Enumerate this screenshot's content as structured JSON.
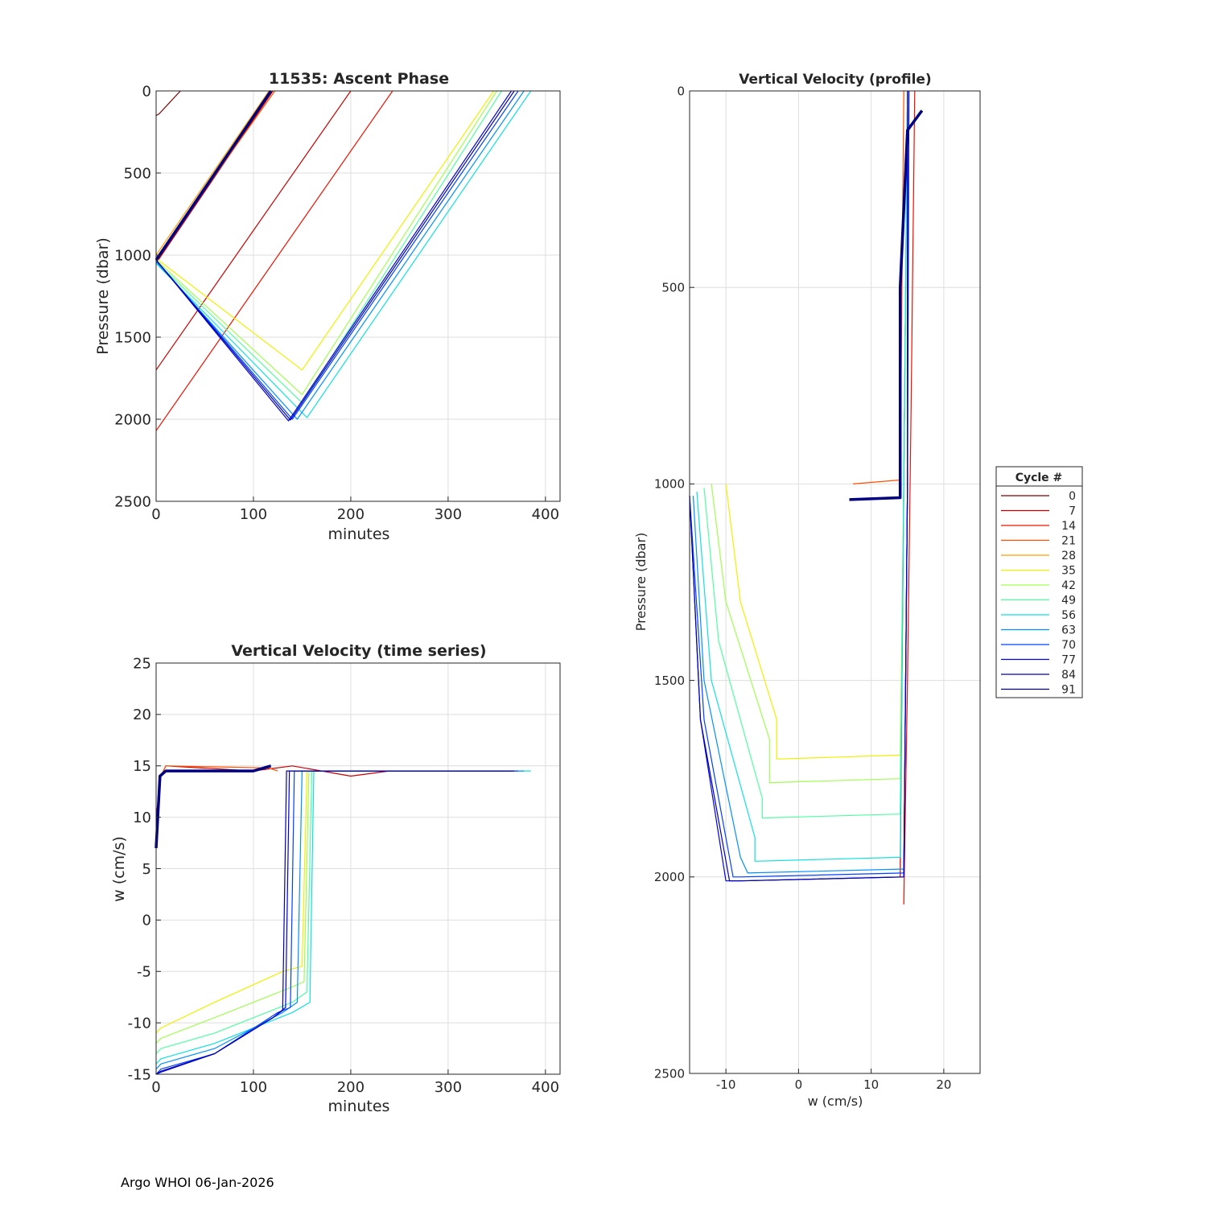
{
  "footer": "Argo WHOI 06-Jan-2026",
  "legend": {
    "title": "Cycle #",
    "entries": [
      "0",
      "7",
      "14",
      "21",
      "28",
      "35",
      "42",
      "49",
      "56",
      "63",
      "70",
      "77",
      "84",
      "91"
    ],
    "colors": [
      "#800000",
      "#c80000",
      "#f01000",
      "#ff5000",
      "#ffa000",
      "#f0f000",
      "#a0ff50",
      "#50ffa0",
      "#10e0e0",
      "#0090ff",
      "#0040ff",
      "#0000e0",
      "#0000b0",
      "#000080"
    ]
  },
  "chart_data": [
    {
      "id": "ascent",
      "type": "line",
      "title": "11535: Ascent Phase",
      "xlabel": "minutes",
      "ylabel": "Pressure (dbar)",
      "xlim": [
        0,
        415
      ],
      "ylim": [
        0,
        2500
      ],
      "y_reversed": true,
      "xticks": [
        0,
        100,
        200,
        300,
        400
      ],
      "yticks": [
        0,
        500,
        1000,
        1500,
        2000,
        2500
      ],
      "grid": true,
      "series": [
        {
          "name": "cycle 0",
          "x": [
            0,
            3,
            25
          ],
          "y": [
            150,
            140,
            0
          ]
        },
        {
          "name": "cycle 7",
          "x": [
            0,
            120
          ],
          "y": [
            1050,
            0
          ]
        },
        {
          "name": "cycle 7b",
          "x": [
            0,
            200
          ],
          "y": [
            1700,
            0
          ]
        },
        {
          "name": "cycle 14",
          "x": [
            0,
            243
          ],
          "y": [
            2070,
            0
          ]
        },
        {
          "name": "cycle 21",
          "x": [
            0,
            122
          ],
          "y": [
            1020,
            0
          ]
        },
        {
          "name": "cycle 28",
          "x": [
            0,
            116
          ],
          "y": [
            1000,
            0
          ]
        },
        {
          "name": "cycle 35",
          "x": [
            0,
            150,
            347
          ],
          "y": [
            1020,
            1700,
            0
          ]
        },
        {
          "name": "cycle 42",
          "x": [
            0,
            150,
            350
          ],
          "y": [
            1030,
            1850,
            0
          ]
        },
        {
          "name": "cycle 49",
          "x": [
            0,
            150,
            355
          ],
          "y": [
            1040,
            1900,
            0
          ]
        },
        {
          "name": "cycle 56",
          "x": [
            0,
            155,
            385
          ],
          "y": [
            1050,
            1990,
            0
          ]
        },
        {
          "name": "cycle 63",
          "x": [
            0,
            145,
            378
          ],
          "y": [
            1040,
            2000,
            0
          ]
        },
        {
          "name": "cycle 70",
          "x": [
            0,
            140,
            372
          ],
          "y": [
            1030,
            2000,
            0
          ]
        },
        {
          "name": "cycle 77",
          "x": [
            0,
            136,
            365
          ],
          "y": [
            1030,
            2010,
            0
          ]
        },
        {
          "name": "cycle 84",
          "x": [
            0,
            138,
            368
          ],
          "y": [
            1030,
            2005,
            0
          ]
        },
        {
          "name": "cycle 91",
          "x": [
            0,
            118
          ],
          "y": [
            1030,
            0
          ]
        }
      ]
    },
    {
      "id": "ts",
      "type": "line",
      "title": "Vertical Velocity (time series)",
      "xlabel": "minutes",
      "ylabel": "w (cm/s)",
      "xlim": [
        0,
        415
      ],
      "ylim": [
        -15,
        25
      ],
      "xticks": [
        0,
        100,
        200,
        300,
        400
      ],
      "yticks": [
        -15,
        -10,
        -5,
        0,
        5,
        10,
        15,
        20,
        25
      ],
      "grid": true,
      "series": [
        {
          "name": "cycle 7",
          "x": [
            0,
            5,
            10,
            100,
            140,
            200,
            240
          ],
          "y": [
            10,
            14,
            15,
            14.5,
            15,
            14,
            14.5
          ]
        },
        {
          "name": "cycle 21",
          "x": [
            0,
            5,
            10,
            115,
            125
          ],
          "y": [
            8,
            14,
            15,
            14.8,
            14.5
          ]
        },
        {
          "name": "cycle 35",
          "x": [
            0,
            5,
            60,
            130,
            150,
            155,
            345
          ],
          "y": [
            -11,
            -10.5,
            -8,
            -5,
            -4.5,
            14.5,
            14.5
          ]
        },
        {
          "name": "cycle 42",
          "x": [
            0,
            5,
            60,
            140,
            152,
            157,
            350
          ],
          "y": [
            -12,
            -11.5,
            -9.5,
            -6.5,
            -6,
            14.5,
            14.5
          ]
        },
        {
          "name": "cycle 49",
          "x": [
            0,
            5,
            60,
            140,
            155,
            160,
            360
          ],
          "y": [
            -13,
            -12.5,
            -11,
            -8,
            -7,
            14.5,
            14.5
          ]
        },
        {
          "name": "cycle 56",
          "x": [
            0,
            5,
            60,
            140,
            158,
            162,
            385
          ],
          "y": [
            -14,
            -13.5,
            -12,
            -9,
            -8,
            14.5,
            14.5
          ]
        },
        {
          "name": "cycle 63",
          "x": [
            0,
            5,
            60,
            130,
            145,
            150,
            378
          ],
          "y": [
            -14.5,
            -14,
            -12.5,
            -9,
            -8,
            14.5,
            14.5
          ]
        },
        {
          "name": "cycle 70",
          "x": [
            0,
            5,
            60,
            125,
            138,
            142,
            372
          ],
          "y": [
            -15,
            -14.5,
            -13,
            -9,
            -8.5,
            14.5,
            14.5
          ]
        },
        {
          "name": "cycle 77",
          "x": [
            0,
            5,
            60,
            120,
            133,
            137,
            365
          ],
          "y": [
            -15,
            -14.8,
            -13,
            -9.5,
            -8.5,
            14.5,
            14.5
          ]
        },
        {
          "name": "cycle 84",
          "x": [
            0,
            5,
            60,
            120,
            130,
            134,
            368
          ],
          "y": [
            -15,
            -14.7,
            -13,
            -9.5,
            -8.8,
            14.5,
            14.5
          ]
        },
        {
          "name": "cycle 91",
          "x": [
            0,
            4,
            10,
            100,
            118
          ],
          "y": [
            7,
            14,
            14.5,
            14.5,
            15
          ]
        }
      ]
    },
    {
      "id": "prof",
      "type": "line",
      "title": "Vertical Velocity (profile)",
      "xlabel": "w (cm/s)",
      "ylabel": "Pressure (dbar)",
      "xlim": [
        -15,
        25
      ],
      "ylim": [
        0,
        2500
      ],
      "y_reversed": true,
      "xticks": [
        -10,
        0,
        10,
        20
      ],
      "yticks": [
        0,
        500,
        1000,
        1500,
        2000,
        2500
      ],
      "grid": true,
      "series": [
        {
          "name": "cycle 7",
          "x": [
            14,
            14.5,
            15
          ],
          "y": [
            2000,
            1000,
            0
          ]
        },
        {
          "name": "cycle 14",
          "x": [
            14.5,
            15,
            15.5,
            16
          ],
          "y": [
            2070,
            1500,
            800,
            0
          ]
        },
        {
          "name": "cycle 21",
          "x": [
            7.5,
            14,
            14.5
          ],
          "y": [
            1000,
            990,
            0
          ]
        },
        {
          "name": "cycle 35",
          "x": [
            -10,
            -8,
            -3,
            -3,
            14,
            14.5,
            15
          ],
          "y": [
            1000,
            1300,
            1600,
            1700,
            1690,
            1000,
            0
          ]
        },
        {
          "name": "cycle 42",
          "x": [
            -12,
            -10,
            -4,
            -4,
            14,
            14.5,
            15
          ],
          "y": [
            1000,
            1300,
            1650,
            1760,
            1750,
            1000,
            0
          ]
        },
        {
          "name": "cycle 49",
          "x": [
            -13,
            -11,
            -5,
            -5,
            14,
            14.5,
            15
          ],
          "y": [
            1010,
            1400,
            1800,
            1850,
            1840,
            1000,
            0
          ]
        },
        {
          "name": "cycle 56",
          "x": [
            -14,
            -12,
            -6,
            -6,
            14,
            14.5,
            15
          ],
          "y": [
            1020,
            1500,
            1900,
            1960,
            1950,
            1000,
            0
          ]
        },
        {
          "name": "cycle 63",
          "x": [
            -14.5,
            -13,
            -8,
            -7,
            14.5,
            15,
            15
          ],
          "y": [
            1030,
            1500,
            1950,
            1990,
            1980,
            1000,
            0
          ]
        },
        {
          "name": "cycle 70",
          "x": [
            -15,
            -13,
            -9,
            -8,
            14.5,
            15,
            15
          ],
          "y": [
            1030,
            1600,
            2000,
            2000,
            1990,
            1000,
            0
          ]
        },
        {
          "name": "cycle 77",
          "x": [
            -15,
            -13.5,
            -10,
            -8,
            14.5,
            15,
            15
          ],
          "y": [
            1030,
            1600,
            2010,
            2010,
            2000,
            1000,
            0
          ]
        },
        {
          "name": "cycle 84",
          "x": [
            -15,
            -13.5,
            -9.5,
            -8,
            14.5,
            15,
            15.2
          ],
          "y": [
            1030,
            1600,
            2010,
            2010,
            2000,
            1000,
            0
          ]
        },
        {
          "name": "cycle 91",
          "x": [
            7,
            14,
            14,
            14.5,
            15,
            17
          ],
          "y": [
            1040,
            1035,
            500,
            300,
            100,
            50
          ]
        }
      ]
    }
  ]
}
